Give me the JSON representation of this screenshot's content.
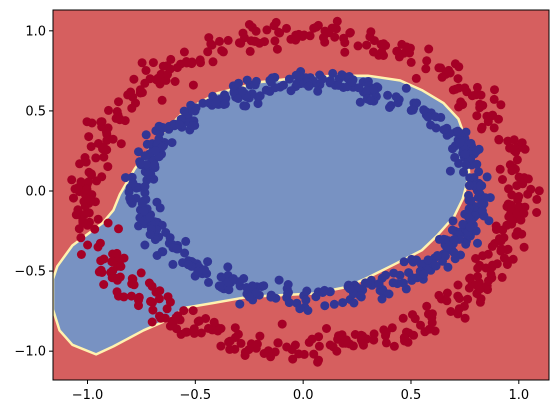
{
  "chart_data": {
    "type": "scatter",
    "title": "",
    "xlabel": "",
    "ylabel": "",
    "xlim": [
      -1.16,
      1.14
    ],
    "ylim": [
      -1.18,
      1.13
    ],
    "grid": false,
    "legend": "none",
    "xticks": [
      -1.0,
      -0.5,
      0.0,
      0.5,
      1.0
    ],
    "yticks": [
      -1.0,
      -0.5,
      0.0,
      0.5,
      1.0
    ],
    "xtick_labels": [
      "−1.0",
      "−0.5",
      "0.0",
      "0.5",
      "1.0"
    ],
    "ytick_labels": [
      "−1.0",
      "−0.5",
      "0.0",
      "0.5",
      "1.0"
    ],
    "decision_regions": {
      "background_color": "#d65f5f",
      "inner_region_color": "#7892c2",
      "boundary_color": "#fff2b0",
      "inner_region_boundary": [
        [
          -1.14,
          -0.47
        ],
        [
          -1.07,
          -0.34
        ],
        [
          -0.93,
          -0.2
        ],
        [
          -0.88,
          -0.12
        ],
        [
          -0.85,
          -0.02
        ],
        [
          -0.78,
          0.14
        ],
        [
          -0.68,
          0.32
        ],
        [
          -0.55,
          0.5
        ],
        [
          -0.4,
          0.61
        ],
        [
          -0.2,
          0.68
        ],
        [
          0.0,
          0.71
        ],
        [
          0.15,
          0.72
        ],
        [
          0.3,
          0.72
        ],
        [
          0.45,
          0.69
        ],
        [
          0.55,
          0.63
        ],
        [
          0.65,
          0.55
        ],
        [
          0.72,
          0.45
        ],
        [
          0.76,
          0.3
        ],
        [
          0.77,
          0.1
        ],
        [
          0.74,
          -0.05
        ],
        [
          0.7,
          -0.16
        ],
        [
          0.62,
          -0.28
        ],
        [
          0.55,
          -0.37
        ],
        [
          0.42,
          -0.46
        ],
        [
          0.3,
          -0.54
        ],
        [
          0.2,
          -0.6
        ],
        [
          0.05,
          -0.64
        ],
        [
          -0.1,
          -0.65
        ],
        [
          -0.25,
          -0.66
        ],
        [
          -0.42,
          -0.7
        ],
        [
          -0.55,
          -0.73
        ],
        [
          -0.62,
          -0.8
        ],
        [
          -0.74,
          -0.87
        ],
        [
          -0.88,
          -0.97
        ],
        [
          -0.96,
          -1.02
        ],
        [
          -1.07,
          -0.96
        ],
        [
          -1.13,
          -0.87
        ],
        [
          -1.16,
          -0.74
        ],
        [
          -1.16,
          -0.55
        ]
      ]
    },
    "series": [
      {
        "color": "#a50026",
        "shape": "ring",
        "center": [
          0.0,
          0.0
        ],
        "radius_x": 1.0,
        "radius_y": 0.98,
        "noise": 0.045,
        "n_points": 500
      },
      {
        "color": "#313695",
        "shape": "ring",
        "center": [
          0.03,
          0.01
        ],
        "radius_x": 0.78,
        "radius_y": 0.66,
        "noise": 0.035,
        "n_points": 500
      }
    ]
  }
}
